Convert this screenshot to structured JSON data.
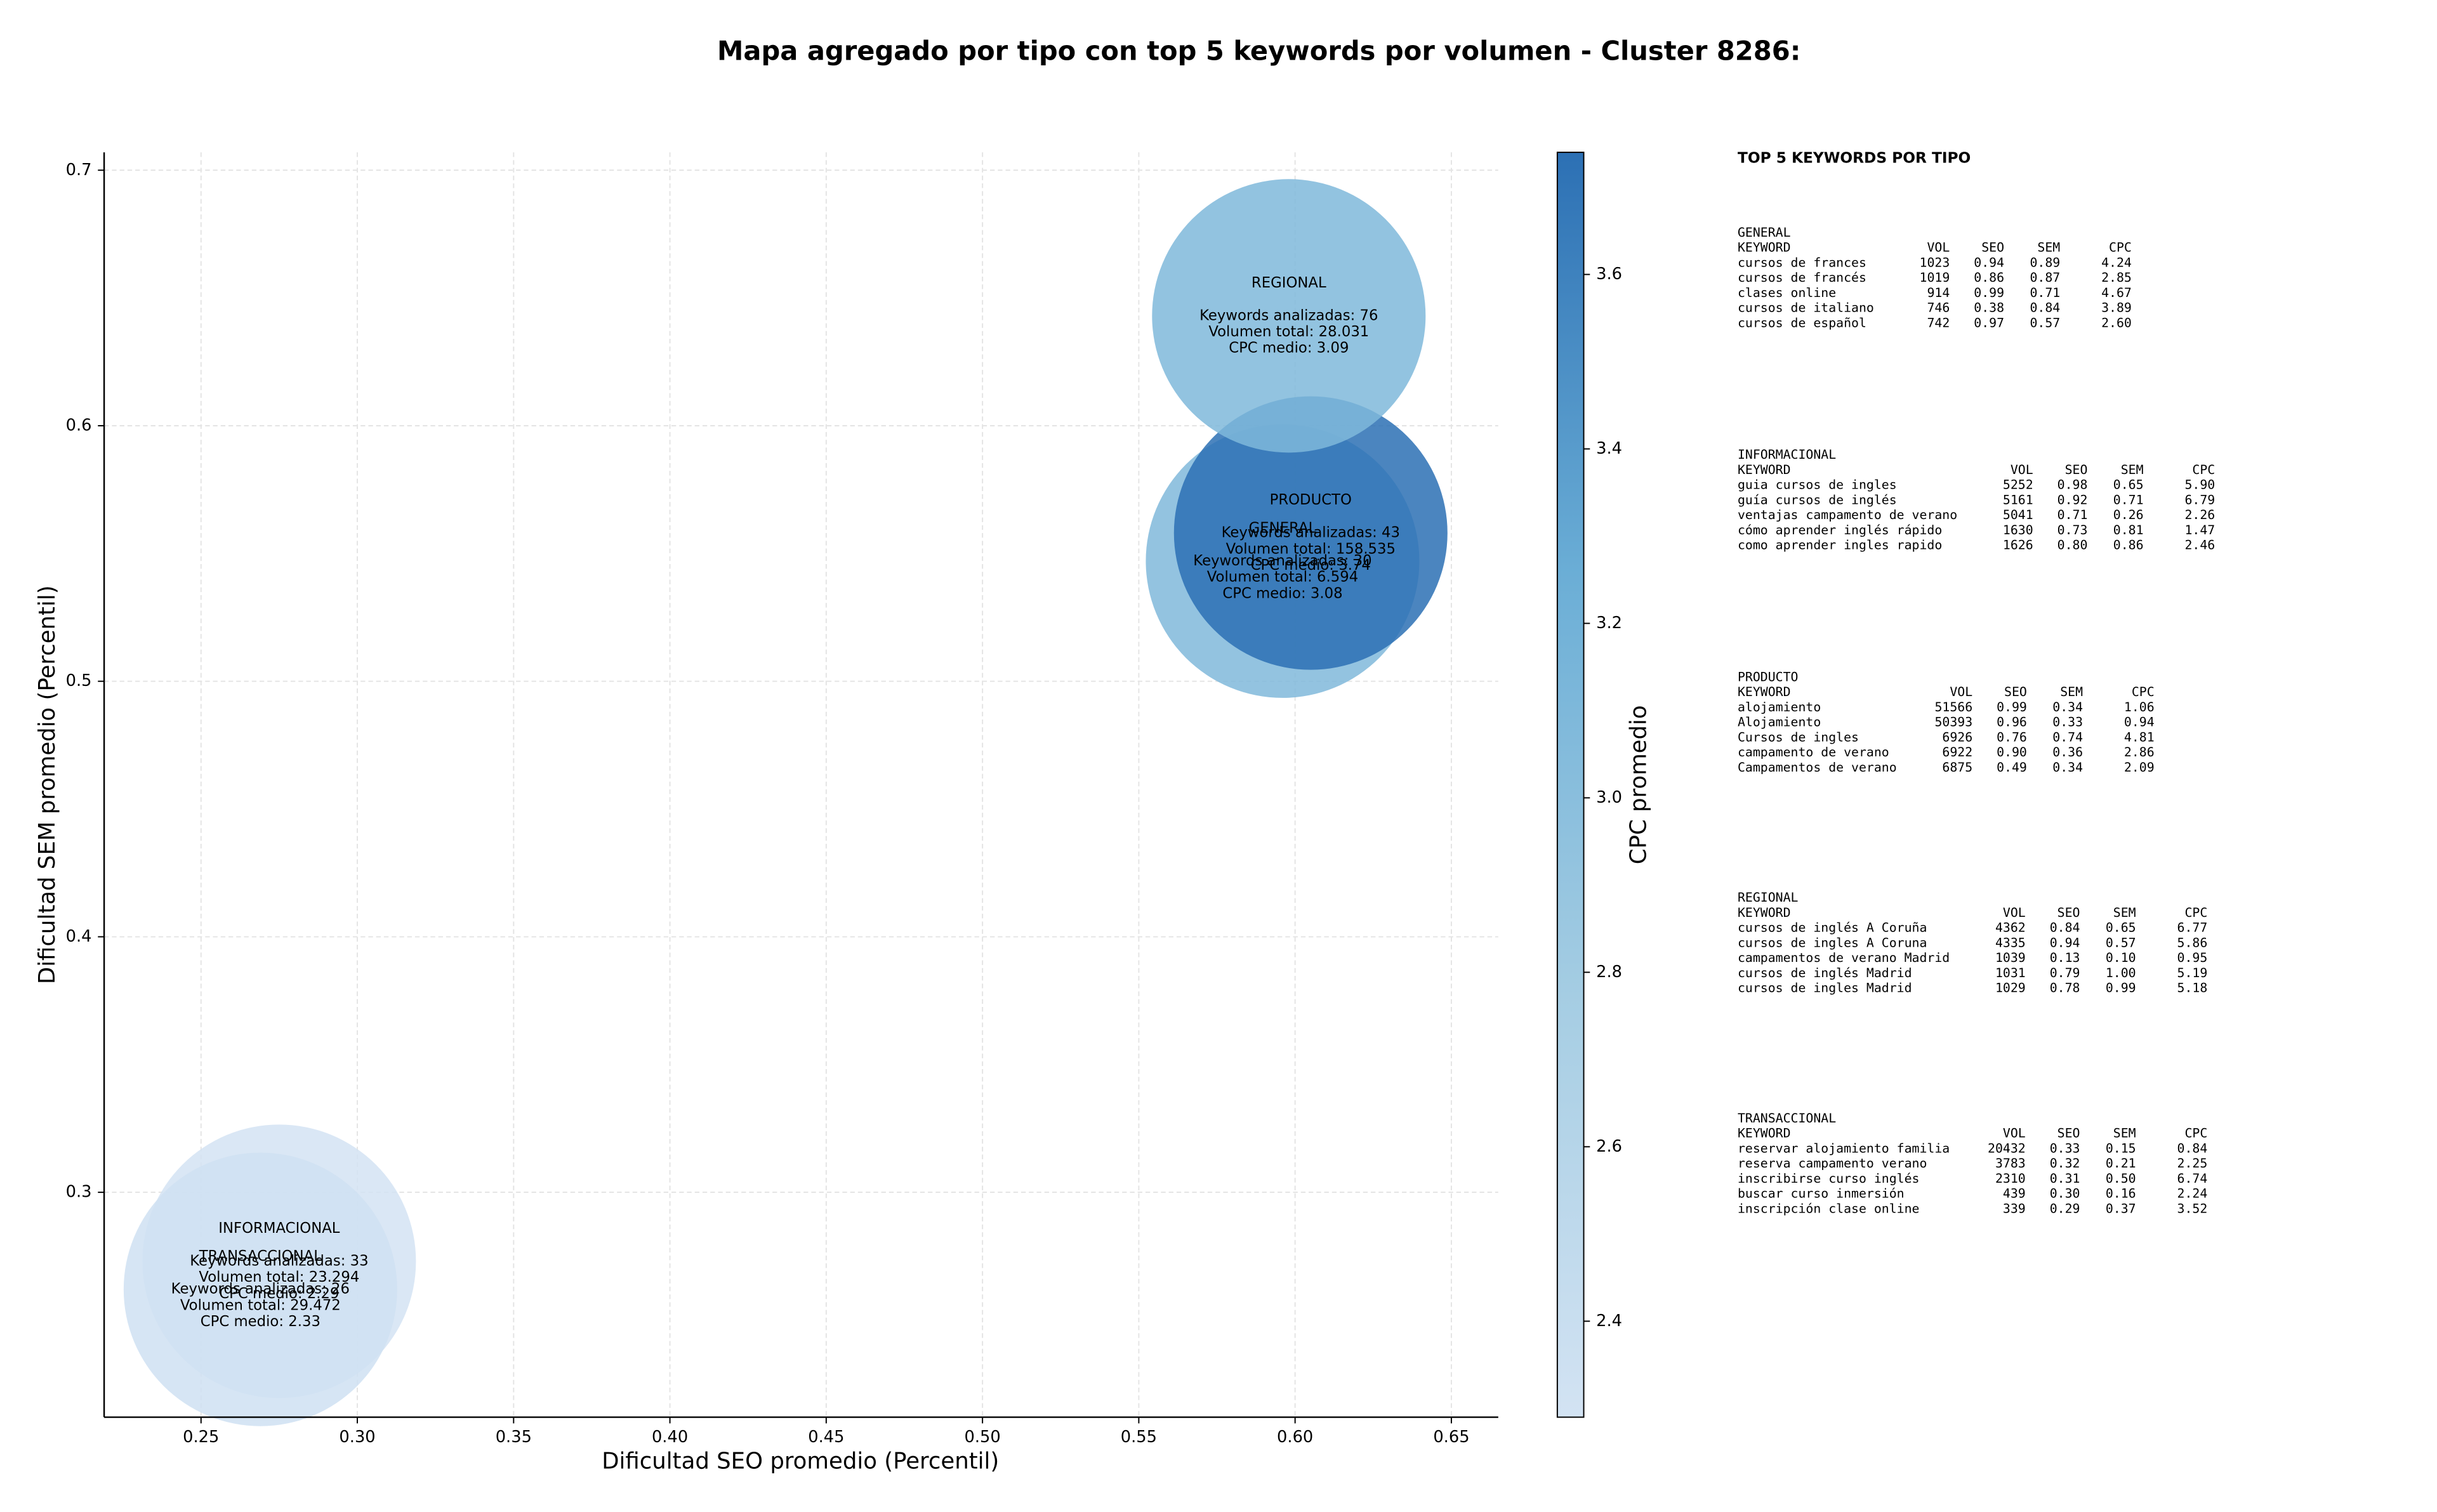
{
  "chart_data": {
    "type": "bubble",
    "title": "Mapa agregado por tipo con top 5 keywords por volumen - Cluster 8286:",
    "x_label": "Dificultad SEO promedio (Percentil)",
    "y_label": "Dificultad SEM promedio (Percentil)",
    "colorbar_label": "CPC promedio",
    "labels": [
      "GENERAL",
      "INFORMACIONAL",
      "PRODUCTO",
      "REGIONAL",
      "TRANSACCIONAL"
    ],
    "x": [
      0.596,
      0.275,
      0.605,
      0.598,
      0.269
    ],
    "y": [
      0.547,
      0.273,
      0.558,
      0.643,
      0.262
    ],
    "cpc": [
      3.08,
      2.29,
      3.74,
      3.09,
      2.33
    ],
    "annotations": [
      [
        "Keywords analizadas: 30",
        "Volumen total: 6.594",
        "CPC medio: 3.08"
      ],
      [
        "Keywords analizadas: 33",
        "Volumen total: 23.294",
        "CPC medio: 2.29"
      ],
      [
        "Keywords analizadas: 43",
        "Volumen total: 158.535",
        "CPC medio: 3.74"
      ],
      [
        "Keywords analizadas: 76",
        "Volumen total: 28.031",
        "CPC medio: 3.09"
      ],
      [
        "Keywords analizadas: 26",
        "Volumen total: 29.472",
        "CPC medio: 2.33"
      ]
    ],
    "xlim": [
      0.219,
      0.665
    ],
    "xticks": [
      0.25,
      {
        "value": 0.3,
        "label": "0.30"
      },
      0.35,
      {
        "value": 0.4,
        "label": "0.40"
      },
      0.45,
      {
        "value": 0.5,
        "label": "0.50"
      },
      0.55,
      {
        "value": 0.6,
        "label": "0.60"
      },
      0.65
    ],
    "ylim": [
      0.212,
      0.707
    ],
    "yticks": [
      0.3,
      0.4,
      0.5,
      0.6,
      0.7
    ],
    "clim": [
      2.29,
      3.74
    ],
    "cticks": [
      2.4,
      2.6,
      2.8,
      {
        "value": 3,
        "label": "3.0"
      },
      3.2,
      3.4,
      3.6
    ],
    "colormap": [
      "#d3e3f3",
      "#a5cde3",
      "#6baed6",
      "#2c70b4"
    ],
    "grid": true
  },
  "panel": {
    "title": "TOP 5 KEYWORDS POR TIPO",
    "columns": [
      "KEYWORD",
      "VOL",
      "SEO",
      "SEM",
      "CPC"
    ],
    "sections": [
      {
        "name": "GENERAL",
        "rows": [
          [
            "cursos de frances",
            "1023",
            "0.94",
            "0.89",
            "4.24"
          ],
          [
            "cursos de francés",
            "1019",
            "0.86",
            "0.87",
            "2.85"
          ],
          [
            "clases online",
            "914",
            "0.99",
            "0.71",
            "4.67"
          ],
          [
            "cursos de italiano",
            "746",
            "0.38",
            "0.84",
            "3.89"
          ],
          [
            "cursos de español",
            "742",
            "0.97",
            "0.57",
            "2.60"
          ]
        ]
      },
      {
        "name": "INFORMACIONAL",
        "rows": [
          [
            "guia cursos de ingles",
            "5252",
            "0.98",
            "0.65",
            "5.90"
          ],
          [
            "guía cursos de inglés",
            "5161",
            "0.92",
            "0.71",
            "6.79"
          ],
          [
            "ventajas campamento de verano",
            "5041",
            "0.71",
            "0.26",
            "2.26"
          ],
          [
            "cómo aprender inglés rápido",
            "1630",
            "0.73",
            "0.81",
            "1.47"
          ],
          [
            "como aprender ingles rapido",
            "1626",
            "0.80",
            "0.86",
            "2.46"
          ]
        ]
      },
      {
        "name": "PRODUCTO",
        "rows": [
          [
            "alojamiento",
            "51566",
            "0.99",
            "0.34",
            "1.06"
          ],
          [
            "Alojamiento",
            "50393",
            "0.96",
            "0.33",
            "0.94"
          ],
          [
            "Cursos de ingles",
            "6926",
            "0.76",
            "0.74",
            "4.81"
          ],
          [
            "campamento de verano",
            "6922",
            "0.90",
            "0.36",
            "2.86"
          ],
          [
            "Campamentos de verano",
            "6875",
            "0.49",
            "0.34",
            "2.09"
          ]
        ]
      },
      {
        "name": "REGIONAL",
        "rows": [
          [
            "cursos de inglés A Coruña",
            "4362",
            "0.84",
            "0.65",
            "6.77"
          ],
          [
            "cursos de ingles A Coruna",
            "4335",
            "0.94",
            "0.57",
            "5.86"
          ],
          [
            "campamentos de verano Madrid",
            "1039",
            "0.13",
            "0.10",
            "0.95"
          ],
          [
            "cursos de inglés Madrid",
            "1031",
            "0.79",
            "1.00",
            "5.19"
          ],
          [
            "cursos de ingles Madrid",
            "1029",
            "0.78",
            "0.99",
            "5.18"
          ]
        ]
      },
      {
        "name": "TRANSACCIONAL",
        "rows": [
          [
            "reservar alojamiento familia",
            "20432",
            "0.33",
            "0.15",
            "0.84"
          ],
          [
            "reserva campamento verano",
            "3783",
            "0.32",
            "0.21",
            "2.25"
          ],
          [
            "inscribirse curso inglés",
            "2310",
            "0.31",
            "0.50",
            "6.74"
          ],
          [
            "buscar curso inmersión",
            "439",
            "0.30",
            "0.16",
            "2.24"
          ],
          [
            "inscripción clase online",
            "339",
            "0.29",
            "0.37",
            "3.52"
          ]
        ]
      }
    ]
  }
}
